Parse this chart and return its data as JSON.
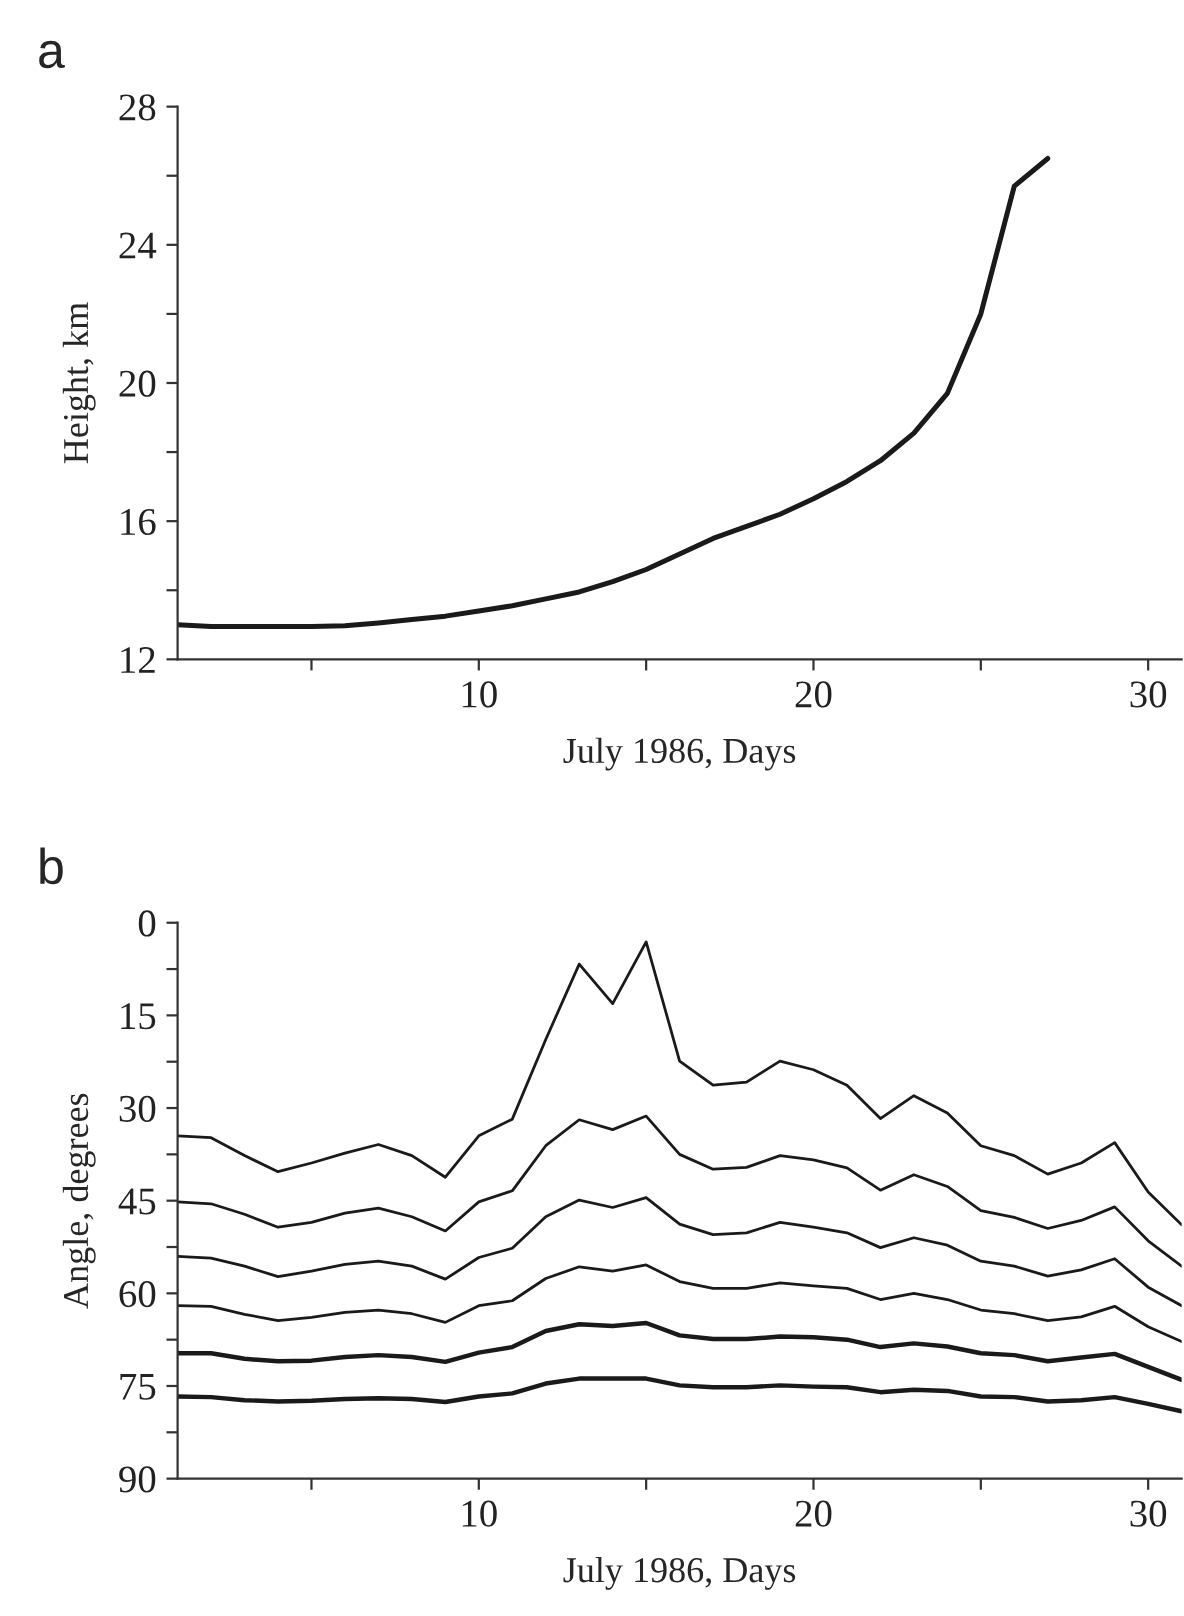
{
  "chart_data": [
    {
      "type": "line",
      "title": "a",
      "xlabel": "July 1986, Days",
      "ylabel": "Height, km",
      "x": [
        1,
        2,
        3,
        4,
        5,
        6,
        7,
        8,
        9,
        10,
        11,
        12,
        13,
        14,
        15,
        16,
        17,
        18,
        19,
        20,
        21,
        22,
        23,
        24,
        25,
        26,
        27
      ],
      "series": [
        {
          "color": "#1a1a1a",
          "values": [
            13.0,
            12.95,
            12.95,
            12.95,
            12.95,
            12.97,
            13.05,
            13.15,
            13.25,
            13.4,
            13.55,
            13.75,
            13.95,
            14.25,
            14.6,
            15.05,
            15.5,
            15.85,
            16.2,
            16.65,
            17.15,
            17.75,
            18.55,
            19.7,
            22.0,
            25.7,
            26.5
          ]
        }
      ],
      "xlim": [
        1,
        31
      ],
      "xticks": [
        {
          "value": 5,
          "label": null
        },
        10,
        {
          "value": 15,
          "label": null
        },
        20,
        {
          "value": 25,
          "label": null
        },
        30
      ],
      "ylim": [
        12,
        28
      ],
      "yticks": [
        12,
        {
          "value": 14,
          "label": null
        },
        16,
        {
          "value": 18,
          "label": null
        },
        20,
        {
          "value": 22,
          "label": null
        },
        24,
        {
          "value": 26,
          "label": null
        },
        28
      ],
      "grid": false,
      "marker": "none",
      "line_style": "solid"
    },
    {
      "type": "line",
      "title": "b",
      "xlabel": "July 1986, Days",
      "ylabel": "Angle, degrees",
      "x": [
        1,
        2,
        3,
        4,
        5,
        6,
        7,
        8,
        9,
        10,
        11,
        12,
        13,
        14,
        15,
        16,
        17,
        18,
        19,
        20,
        21,
        22,
        23,
        24,
        25,
        26,
        27,
        28,
        29,
        30,
        31
      ],
      "series": [
        {
          "color": "#1a1a1a",
          "values": [
            34.5,
            34.8,
            37.7,
            40.3,
            38.9,
            37.3,
            35.9,
            37.7,
            41.2,
            34.5,
            31.8,
            18.9,
            6.7,
            13.1,
            3.1,
            22.4,
            26.3,
            25.8,
            22.4,
            23.8,
            26.3,
            31.7,
            28.0,
            30.8,
            36.1,
            37.7,
            40.7,
            38.9,
            35.6,
            43.6,
            48.9
          ]
        },
        {
          "color": "#1a1a1a",
          "values": [
            45.2,
            45.5,
            47.2,
            49.3,
            48.5,
            47.0,
            46.2,
            47.6,
            49.9,
            45.2,
            43.4,
            36.1,
            31.9,
            33.5,
            31.3,
            37.5,
            39.9,
            39.6,
            37.7,
            38.4,
            39.7,
            43.3,
            40.8,
            42.7,
            46.6,
            47.7,
            49.5,
            48.2,
            46.0,
            51.5,
            55.6
          ]
        },
        {
          "color": "#1a1a1a",
          "values": [
            54.0,
            54.3,
            55.6,
            57.3,
            56.4,
            55.3,
            54.8,
            55.6,
            57.7,
            54.2,
            52.7,
            47.6,
            44.9,
            46.1,
            44.5,
            48.8,
            50.5,
            50.2,
            48.5,
            49.3,
            50.2,
            52.6,
            51.0,
            52.2,
            54.8,
            55.6,
            57.2,
            56.2,
            54.4,
            59.0,
            62.0
          ]
        },
        {
          "color": "#1a1a1a",
          "values": [
            62.0,
            62.1,
            63.4,
            64.4,
            63.9,
            63.1,
            62.7,
            63.3,
            64.7,
            62.0,
            61.2,
            57.6,
            55.7,
            56.4,
            55.4,
            58.1,
            59.2,
            59.2,
            58.3,
            58.8,
            59.2,
            61.0,
            60.0,
            61.0,
            62.7,
            63.3,
            64.4,
            63.8,
            62.1,
            65.4,
            67.8
          ]
        },
        {
          "color": "#1a1a1a",
          "values": [
            69.7,
            69.7,
            70.6,
            71.0,
            70.9,
            70.3,
            70.0,
            70.3,
            71.1,
            69.6,
            68.7,
            66.1,
            65.0,
            65.3,
            64.8,
            66.8,
            67.4,
            67.4,
            67.0,
            67.1,
            67.5,
            68.7,
            68.1,
            68.6,
            69.7,
            70.0,
            71.0,
            70.4,
            69.8,
            71.9,
            74.0
          ]
        },
        {
          "color": "#1a1a1a",
          "values": [
            76.7,
            76.8,
            77.3,
            77.5,
            77.4,
            77.1,
            77.0,
            77.1,
            77.6,
            76.7,
            76.2,
            74.6,
            73.8,
            73.8,
            73.8,
            74.9,
            75.2,
            75.2,
            74.9,
            75.1,
            75.2,
            76.0,
            75.6,
            75.8,
            76.7,
            76.8,
            77.5,
            77.3,
            76.8,
            77.9,
            79.1
          ]
        }
      ],
      "xlim": [
        1,
        31
      ],
      "xticks": [
        {
          "value": 5,
          "label": null
        },
        10,
        {
          "value": 15,
          "label": null
        },
        20,
        {
          "value": 25,
          "label": null
        },
        30
      ],
      "ylim": [
        90,
        0
      ],
      "yticks": [
        0,
        {
          "value": 7.5,
          "label": null
        },
        15,
        {
          "value": 22.5,
          "label": null
        },
        30,
        {
          "value": 37.5,
          "label": null
        },
        45,
        {
          "value": 52.5,
          "label": null
        },
        60,
        {
          "value": 67.5,
          "label": null
        },
        75,
        {
          "value": 82.5,
          "label": null
        },
        90
      ],
      "grid": false,
      "marker": "none",
      "line_style": "solid"
    }
  ]
}
